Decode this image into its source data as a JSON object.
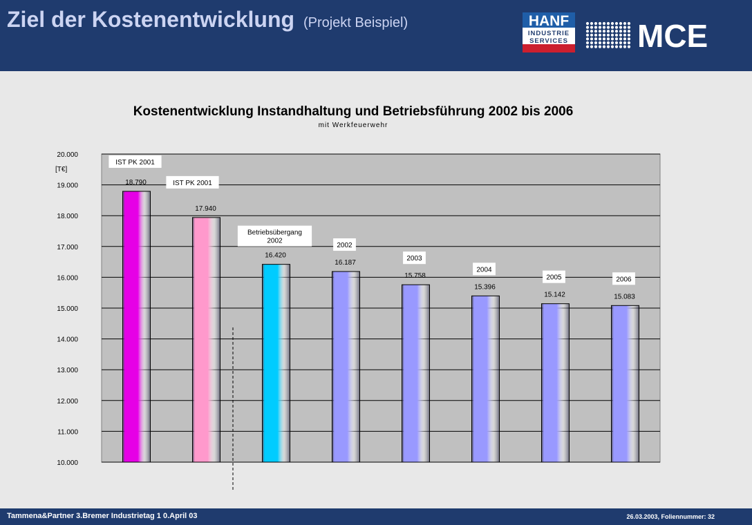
{
  "header": {
    "title": "Ziel der Kostenentwicklung",
    "subtitle": "(Projekt Beispiel)",
    "logo_hanf_line1": "HANF",
    "logo_hanf_line2": "INDUSTRIE",
    "logo_hanf_line3": "SERVICES",
    "logo_mce": "MCE"
  },
  "footer": {
    "left": "Tammena&Partner  3.Bremer Industrietag  1 0.April 03",
    "right": "26.03.2003, Foliennummer: 32"
  },
  "colors": {
    "header_bg": "#1f3b6e",
    "plot_bg": "#c0c0c0",
    "magenta": "#e600e6",
    "pink": "#ff99cc",
    "cyan": "#00ccff",
    "periwinkle": "#9999ff"
  },
  "chart_data": {
    "type": "bar",
    "title": "Kostenentwicklung Instandhaltung und Betriebsführung 2002 bis 2006",
    "subtitle": "mit Werkfeuerwehr",
    "ylabel": "[T€]",
    "ylim": [
      10000,
      20000
    ],
    "yticks": [
      "10.000",
      "11.000",
      "12.000",
      "13.000",
      "14.000",
      "15.000",
      "16.000",
      "17.000",
      "18.000",
      "19.000",
      "20.000"
    ],
    "grid": true,
    "values": [
      18790,
      17940,
      16420,
      16187,
      15758,
      15396,
      15142,
      15083
    ],
    "value_labels": [
      "18.790",
      "17.940",
      "16.420",
      "16.187",
      "15.758",
      "15.396",
      "15.142",
      "15.083"
    ],
    "annotations": [
      {
        "lines": [
          "IST PK 2001"
        ]
      },
      {
        "lines": [
          "IST PK 2001"
        ]
      },
      {
        "lines": [
          "Betriebsübergang",
          "2002"
        ]
      },
      {
        "lines": [
          "2002"
        ]
      },
      {
        "lines": [
          "2003"
        ]
      },
      {
        "lines": [
          "2004"
        ]
      },
      {
        "lines": [
          "2005"
        ]
      },
      {
        "lines": [
          "2006"
        ]
      }
    ],
    "bar_colors": [
      "#e600e6",
      "#ff99cc",
      "#00ccff",
      "#9999ff",
      "#9999ff",
      "#9999ff",
      "#9999ff",
      "#9999ff"
    ]
  }
}
